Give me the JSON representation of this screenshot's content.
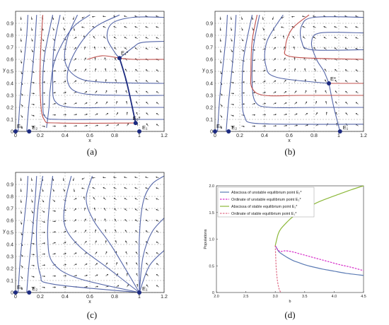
{
  "chart_data": [
    {
      "type": "line",
      "caption": "(a)",
      "xlabel": "x",
      "ylabel": "y",
      "xlim": [
        0,
        1.2
      ],
      "ylim": [
        0,
        1.0
      ],
      "xticks": [
        "0",
        "0.2",
        "0.4",
        "0.6",
        "0.8",
        "1",
        "1.2"
      ],
      "yticks": [
        "0",
        "0.1",
        "0.2",
        "0.3",
        "0.4",
        "0.5",
        "0.6",
        "0.7",
        "0.8",
        "0.9"
      ],
      "grid": true,
      "points": [
        {
          "name": "E0",
          "label": "E₀",
          "x": 0,
          "y": 0
        },
        {
          "name": "E2",
          "label": "E₂",
          "x": 0.11,
          "y": 0
        },
        {
          "name": "E2star",
          "label": "E₂*",
          "x": 0.97,
          "y": 0.07
        },
        {
          "name": "E1",
          "label": "E₁",
          "x": 1,
          "y": 0
        },
        {
          "name": "E1star",
          "label": "E₁*",
          "x": 0.84,
          "y": 0.61
        }
      ],
      "trajectories_blue": [
        [
          [
            0.02,
            0
          ],
          [
            0.04,
            0.3
          ],
          [
            0.07,
            0.6
          ],
          [
            0.09,
            0.8
          ],
          [
            0.1,
            0.97
          ]
        ],
        [
          [
            0.09,
            0
          ],
          [
            0.11,
            0.25
          ],
          [
            0.14,
            0.55
          ],
          [
            0.16,
            0.8
          ],
          [
            0.17,
            0.97
          ]
        ],
        [
          [
            0.6,
            0.97
          ],
          [
            0.45,
            0.85
          ],
          [
            0.32,
            0.6
          ],
          [
            0.28,
            0.35
          ],
          [
            0.27,
            0.2
          ],
          [
            0.25,
            0.03
          ]
        ],
        [
          [
            0.84,
            0.97
          ],
          [
            0.62,
            0.85
          ],
          [
            0.46,
            0.62
          ],
          [
            0.42,
            0.42
          ],
          [
            0.52,
            0.32
          ],
          [
            0.85,
            0.3
          ],
          [
            1.2,
            0.3
          ]
        ],
        [
          [
            0.3,
            0.97
          ],
          [
            0.23,
            0.6
          ],
          [
            0.22,
            0.25
          ],
          [
            0.24,
            0.12
          ],
          [
            0.35,
            0.1
          ],
          [
            0.7,
            0.1
          ],
          [
            1.2,
            0.1
          ]
        ],
        [
          [
            1.2,
            0.95
          ],
          [
            0.95,
            0.95
          ],
          [
            0.78,
            0.9
          ],
          [
            0.74,
            0.78
          ],
          [
            0.8,
            0.66
          ],
          [
            0.84,
            0.61
          ]
        ],
        [
          [
            1.2,
            0.75
          ],
          [
            1.02,
            0.74
          ],
          [
            0.95,
            0.7
          ],
          [
            0.84,
            0.61
          ]
        ],
        [
          [
            0.5,
            0.97
          ],
          [
            0.42,
            0.78
          ],
          [
            0.4,
            0.58
          ],
          [
            0.5,
            0.45
          ],
          [
            0.7,
            0.41
          ],
          [
            1.2,
            0.4
          ]
        ],
        [
          [
            0.36,
            0.97
          ],
          [
            0.31,
            0.7
          ],
          [
            0.3,
            0.4
          ],
          [
            0.32,
            0.25
          ],
          [
            0.45,
            0.2
          ],
          [
            0.8,
            0.2
          ],
          [
            1.2,
            0.2
          ]
        ]
      ],
      "separatrix_red": [
        [
          [
            0.22,
            0.97
          ],
          [
            0.2,
            0.6
          ],
          [
            0.2,
            0.3
          ],
          [
            0.23,
            0.1
          ],
          [
            0.35,
            0.07
          ],
          [
            0.97,
            0.07
          ]
        ],
        [
          [
            1.2,
            0.6
          ],
          [
            0.95,
            0.6
          ],
          [
            0.84,
            0.61
          ]
        ],
        [
          [
            0.84,
            0.61
          ],
          [
            0.7,
            0.63
          ],
          [
            0.58,
            0.6
          ]
        ]
      ],
      "manifold_dark": [
        [
          0.84,
          0.61
        ],
        [
          0.9,
          0.4
        ],
        [
          0.97,
          0.07
        ]
      ]
    },
    {
      "type": "line",
      "caption": "(b)",
      "xlabel": "x",
      "ylabel": "y",
      "xlim": [
        0,
        1.2
      ],
      "ylim": [
        0,
        1.0
      ],
      "xticks": [
        "0",
        "0.2",
        "0.4",
        "0.6",
        "0.8",
        "1",
        "1.2"
      ],
      "yticks": [
        "0",
        "0.1",
        "0.2",
        "0.3",
        "0.4",
        "0.5",
        "0.6",
        "0.7",
        "0.8",
        "0.9"
      ],
      "grid": true,
      "points": [
        {
          "name": "E0",
          "label": "E₀",
          "x": 0,
          "y": 0
        },
        {
          "name": "E2",
          "label": "E₂",
          "x": 0.11,
          "y": 0
        },
        {
          "name": "E1",
          "label": "E₁",
          "x": 1.01,
          "y": 0
        },
        {
          "name": "Estar",
          "label": "E*",
          "x": 0.92,
          "y": 0.4
        }
      ],
      "trajectories_blue": [
        [
          [
            0.02,
            0
          ],
          [
            0.04,
            0.3
          ],
          [
            0.07,
            0.6
          ],
          [
            0.09,
            0.8
          ],
          [
            0.1,
            0.97
          ]
        ],
        [
          [
            0.09,
            0
          ],
          [
            0.11,
            0.25
          ],
          [
            0.14,
            0.55
          ],
          [
            0.16,
            0.8
          ],
          [
            0.17,
            0.97
          ]
        ],
        [
          [
            0.3,
            0.97
          ],
          [
            0.23,
            0.6
          ],
          [
            0.22,
            0.25
          ],
          [
            0.24,
            0.12
          ],
          [
            0.3,
            0.07
          ],
          [
            0.6,
            0.06
          ],
          [
            1.2,
            0.06
          ]
        ],
        [
          [
            0.36,
            0.97
          ],
          [
            0.31,
            0.7
          ],
          [
            0.3,
            0.4
          ],
          [
            0.33,
            0.24
          ],
          [
            0.45,
            0.2
          ],
          [
            0.8,
            0.2
          ],
          [
            1.2,
            0.2
          ]
        ],
        [
          [
            0.55,
            0.97
          ],
          [
            0.42,
            0.75
          ],
          [
            0.41,
            0.55
          ],
          [
            0.5,
            0.45
          ],
          [
            0.92,
            0.4
          ]
        ],
        [
          [
            1.2,
            0.95
          ],
          [
            0.8,
            0.95
          ],
          [
            0.7,
            0.88
          ],
          [
            0.7,
            0.75
          ],
          [
            0.78,
            0.68
          ],
          [
            1.2,
            0.68
          ]
        ],
        [
          [
            1.2,
            0.82
          ],
          [
            0.85,
            0.82
          ],
          [
            0.78,
            0.74
          ],
          [
            0.82,
            0.6
          ],
          [
            0.88,
            0.5
          ],
          [
            0.92,
            0.4
          ]
        ],
        [
          [
            0.92,
            0.4
          ],
          [
            0.96,
            0.2
          ],
          [
            1.01,
            0
          ]
        ]
      ],
      "separatrix_red": [
        [
          [
            0.34,
            0.97
          ],
          [
            0.3,
            0.75
          ],
          [
            0.29,
            0.5
          ],
          [
            0.3,
            0.36
          ],
          [
            0.4,
            0.3
          ],
          [
            0.7,
            0.3
          ],
          [
            1.2,
            0.3
          ]
        ],
        [
          [
            0.92,
            0.4
          ],
          [
            1.2,
            0.4
          ]
        ],
        [
          [
            0.76,
            0.97
          ],
          [
            0.62,
            0.85
          ],
          [
            0.57,
            0.7
          ],
          [
            0.63,
            0.62
          ],
          [
            1.2,
            0.6
          ]
        ]
      ]
    },
    {
      "type": "line",
      "caption": "(c)",
      "xlabel": "x",
      "ylabel": "y",
      "xlim": [
        0,
        1.2
      ],
      "ylim": [
        0,
        1.0
      ],
      "xticks": [
        "0",
        "0.2",
        "0.4",
        "0.6",
        "0.8",
        "1",
        "1.2"
      ],
      "yticks": [
        "0",
        "0.1",
        "0.2",
        "0.3",
        "0.4",
        "0.5",
        "0.6",
        "0.7",
        "0.8",
        "0.9"
      ],
      "grid": true,
      "points": [
        {
          "name": "E0",
          "label": "E₀",
          "x": 0,
          "y": 0
        },
        {
          "name": "E2",
          "label": "E₂",
          "x": 0.11,
          "y": 0
        },
        {
          "name": "E1",
          "label": "E₁",
          "x": 1,
          "y": 0
        }
      ],
      "trajectories_blue": [
        [
          [
            0.02,
            0
          ],
          [
            0.04,
            0.3
          ],
          [
            0.07,
            0.6
          ],
          [
            0.09,
            0.8
          ],
          [
            0.1,
            0.97
          ]
        ],
        [
          [
            0.09,
            0
          ],
          [
            0.11,
            0.25
          ],
          [
            0.14,
            0.55
          ],
          [
            0.16,
            0.8
          ],
          [
            0.17,
            0.97
          ]
        ],
        [
          [
            0.22,
            0.97
          ],
          [
            0.18,
            0.7
          ],
          [
            0.17,
            0.4
          ],
          [
            0.2,
            0.15
          ],
          [
            0.3,
            0.07
          ],
          [
            1,
            0
          ]
        ],
        [
          [
            0.3,
            0.97
          ],
          [
            0.27,
            0.7
          ],
          [
            0.26,
            0.45
          ],
          [
            0.3,
            0.25
          ],
          [
            0.5,
            0.12
          ],
          [
            1,
            0
          ]
        ],
        [
          [
            0.45,
            0.97
          ],
          [
            0.4,
            0.75
          ],
          [
            0.4,
            0.55
          ],
          [
            0.52,
            0.38
          ],
          [
            0.75,
            0.2
          ],
          [
            1,
            0
          ]
        ],
        [
          [
            0.62,
            0.97
          ],
          [
            0.57,
            0.78
          ],
          [
            0.63,
            0.6
          ],
          [
            0.78,
            0.38
          ],
          [
            1,
            0
          ]
        ],
        [
          [
            1.2,
            0.97
          ],
          [
            1.1,
            0.9
          ],
          [
            1.03,
            0.75
          ],
          [
            1.0,
            0.45
          ],
          [
            1,
            0
          ]
        ],
        [
          [
            1.2,
            0.62
          ],
          [
            1.1,
            0.5
          ],
          [
            1.03,
            0.3
          ],
          [
            1,
            0
          ]
        ],
        [
          [
            1.2,
            0.35
          ],
          [
            1.08,
            0.22
          ],
          [
            1,
            0
          ]
        ]
      ]
    },
    {
      "type": "line",
      "caption": "(d)",
      "xlabel": "b",
      "ylabel": "Populations",
      "xlim": [
        2.0,
        4.5
      ],
      "ylim": [
        0,
        2.0
      ],
      "xticks": [
        "2.0",
        "2.5",
        "3.0",
        "3.5",
        "4.0",
        "4.5"
      ],
      "yticks": [
        "0",
        "0.5",
        "1.0",
        "1.5",
        "2.0"
      ],
      "grid": false,
      "legend_position": "top-left",
      "series": [
        {
          "name": "Abscissa of unstable equilibrium point E₂*",
          "color": "#5b7bb4",
          "dash": "solid",
          "x": [
            3.0,
            3.05,
            3.1,
            3.2,
            3.3,
            3.4,
            3.5,
            3.6,
            3.8,
            4.0,
            4.2,
            4.5
          ],
          "values": [
            0.88,
            0.78,
            0.73,
            0.66,
            0.6,
            0.56,
            0.52,
            0.49,
            0.44,
            0.4,
            0.36,
            0.32
          ]
        },
        {
          "name": "Ordinate of unstable equilibrium point E₂*",
          "color": "#d62ac8",
          "dash": "dashed",
          "x": [
            3.0,
            3.05,
            3.1,
            3.15,
            3.2,
            3.3,
            3.4,
            3.5,
            3.7,
            3.9,
            4.1,
            4.3,
            4.5
          ],
          "values": [
            0.88,
            0.79,
            0.77,
            0.78,
            0.78,
            0.76,
            0.73,
            0.7,
            0.64,
            0.58,
            0.52,
            0.47,
            0.41
          ]
        },
        {
          "name": "Abscissa of stable equilibrium point E₁*",
          "color": "#8cb83a",
          "dash": "solid",
          "x": [
            3.0,
            3.05,
            3.1,
            3.2,
            3.3,
            3.5,
            3.7,
            3.9,
            4.1,
            4.3,
            4.5
          ],
          "values": [
            0.88,
            1.1,
            1.2,
            1.32,
            1.42,
            1.56,
            1.68,
            1.77,
            1.85,
            1.93,
            2.0
          ]
        },
        {
          "name": "Ordinate of stable equilibrium point E₁*",
          "color": "#e0708a",
          "dash": "dashed",
          "x": [
            3.0,
            3.01,
            3.02,
            3.04,
            3.07,
            3.1
          ],
          "values": [
            0.88,
            0.6,
            0.4,
            0.2,
            0.05,
            0.0
          ]
        }
      ]
    }
  ]
}
